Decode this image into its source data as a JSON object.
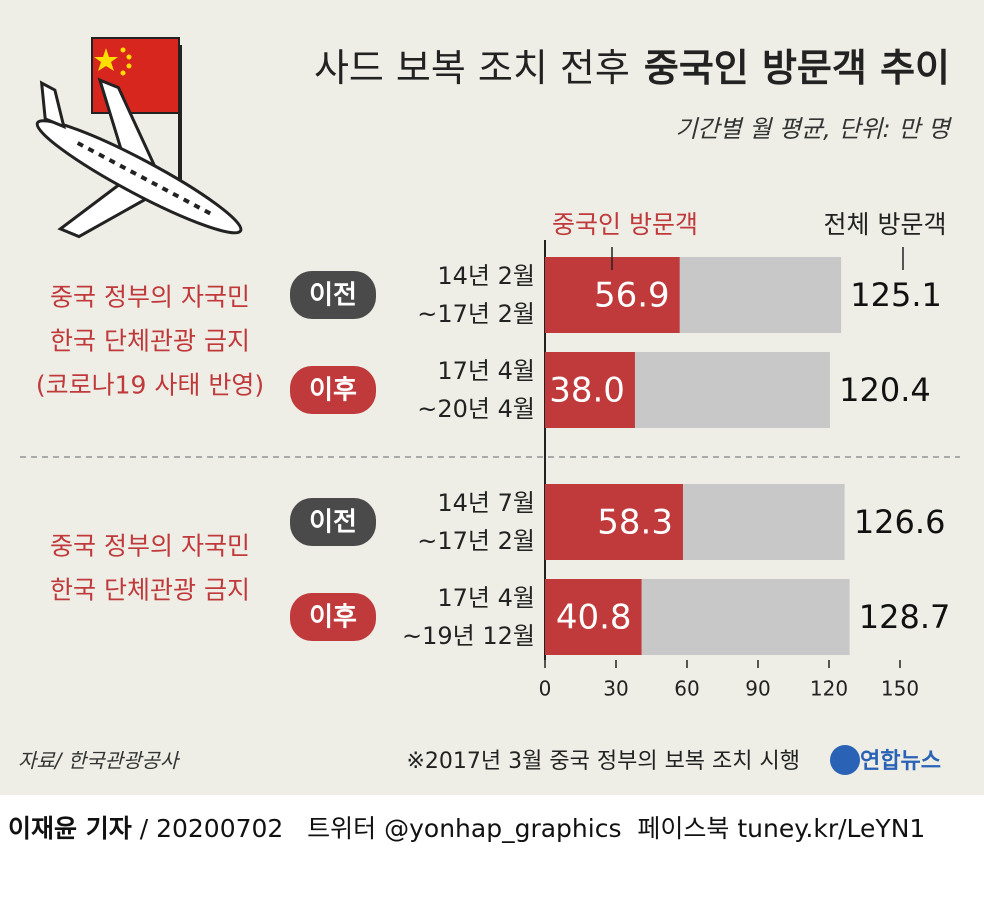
{
  "chart_data": {
    "type": "bar",
    "title_light": "사드 보복 조치 전후",
    "title_bold": "중국인 방문객 추이",
    "subtitle": "기간별 월 평균, 단위: 만 명",
    "categories": [
      [
        "14년 2월",
        "~17년 2월"
      ],
      [
        "17년 4월",
        "~20년 4월"
      ],
      [
        "14년 7월",
        "~17년 2월"
      ],
      [
        "17년 4월",
        "~19년 12월"
      ]
    ],
    "badges": [
      "이전",
      "이후",
      "이전",
      "이후"
    ],
    "badge_colors": [
      "#4a4a4a",
      "#c0393b",
      "#4a4a4a",
      "#c0393b"
    ],
    "groups": [
      {
        "rows": [
          0,
          1
        ],
        "label": [
          "중국 정부의 자국민",
          "한국 단체관광 금지",
          "(코로나19 사태 반영)"
        ]
      },
      {
        "rows": [
          2,
          3
        ],
        "label": [
          "중국 정부의 자국민",
          "한국 단체관광 금지"
        ]
      }
    ],
    "series": [
      {
        "name": "전체 방문객",
        "color": "#c8c8c8",
        "values": [
          125.1,
          120.4,
          126.6,
          128.7
        ]
      },
      {
        "name": "중국인 방문객",
        "color": "#c0393b",
        "values": [
          56.9,
          38.0,
          58.3,
          40.8
        ],
        "value_labels": [
          "56.9",
          "38.0",
          "58.3",
          "40.8"
        ]
      }
    ],
    "xlim": [
      0,
      150
    ],
    "xticks": [
      0,
      30,
      60,
      90,
      120,
      150
    ],
    "footnote": "※2017년 3월 중국 정부의 보복 조치 시행",
    "source": "자료/ 한국관광공사"
  },
  "logo": "연합뉴스",
  "footer": {
    "reporter": "이재윤 기자",
    "details": "/ 20200702   트위터 @yonhap_graphics  페이스북 tuney.kr/LeYN1"
  }
}
